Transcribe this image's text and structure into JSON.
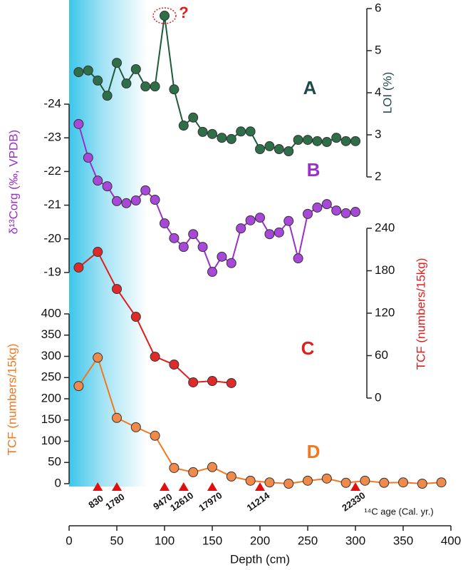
{
  "chart_data": [
    {
      "type": "line",
      "panel_label": "A",
      "ylabel": "LOI (%)",
      "axis_side": "right",
      "ylim": [
        2,
        6
      ],
      "yticks": [
        2,
        3,
        4,
        5,
        6
      ],
      "xlim": [
        0,
        400
      ],
      "x": [
        10,
        20,
        30,
        40,
        50,
        60,
        70,
        80,
        90,
        100,
        110,
        120,
        130,
        140,
        150,
        160,
        170,
        180,
        190,
        200,
        210,
        220,
        230,
        240,
        250,
        260,
        270,
        280,
        290,
        300
      ],
      "series": [
        {
          "name": "LOI",
          "color": "#1f5a3a",
          "values": [
            4.49,
            4.53,
            4.29,
            3.93,
            4.71,
            4.22,
            4.56,
            4.15,
            4.15,
            5.83,
            4.08,
            3.22,
            3.41,
            3.07,
            3.02,
            2.93,
            2.9,
            3.08,
            3.08,
            2.66,
            2.73,
            2.66,
            2.61,
            2.88,
            2.88,
            2.85,
            2.83,
            2.93,
            2.85,
            2.85
          ]
        }
      ],
      "annotation": "?"
    },
    {
      "type": "line",
      "panel_label": "B",
      "ylabel": "δ¹³Corg (‰, VPDB)",
      "axis_side": "left",
      "ylim": [
        -19,
        -24
      ],
      "yticks": [
        -24,
        -23,
        -22,
        -21,
        -20,
        -19
      ],
      "xlim": [
        0,
        400
      ],
      "x": [
        10,
        20,
        30,
        40,
        50,
        60,
        70,
        80,
        90,
        100,
        110,
        120,
        130,
        140,
        150,
        160,
        170,
        180,
        190,
        200,
        210,
        220,
        230,
        240,
        250,
        260,
        270,
        280,
        290,
        300
      ],
      "series": [
        {
          "name": "δ13Corg",
          "color": "#9b30c8",
          "values": [
            -23.41,
            -22.41,
            -21.73,
            -21.56,
            -21.12,
            -21.06,
            -21.14,
            -21.44,
            -21.16,
            -20.46,
            -20.02,
            -19.76,
            -20.14,
            -19.76,
            -19.02,
            -19.47,
            -19.28,
            -20.31,
            -20.55,
            -20.63,
            -20.14,
            -20.19,
            -20.53,
            -19.42,
            -20.74,
            -20.93,
            -21.03,
            -20.84,
            -20.76,
            -20.8
          ]
        }
      ]
    },
    {
      "type": "line",
      "panel_label": "C",
      "ylabel": "TCF (numbers/15kg)",
      "axis_side": "right",
      "ylim": [
        0,
        240
      ],
      "yticks": [
        0,
        60,
        120,
        180,
        240
      ],
      "xlim": [
        0,
        400
      ],
      "x": [
        10,
        30,
        50,
        70,
        90,
        110,
        130,
        150,
        170
      ],
      "series": [
        {
          "name": "TCF C",
          "color": "#e01e1e",
          "values": [
            184.5,
            206.7,
            154.2,
            114.9,
            58.5,
            47.4,
            22.2,
            24.2,
            21.2
          ]
        }
      ]
    },
    {
      "type": "line",
      "panel_label": "D",
      "ylabel": "TCF (numbers/15kg)",
      "axis_side": "left",
      "ylim": [
        0,
        400
      ],
      "yticks": [
        0,
        50,
        100,
        150,
        200,
        250,
        300,
        350,
        400
      ],
      "xlabel": "Depth (cm)",
      "xlim": [
        0,
        400
      ],
      "xticks": [
        0,
        50,
        100,
        150,
        200,
        250,
        300,
        350,
        400
      ],
      "x": [
        10,
        30,
        50,
        70,
        90,
        110,
        130,
        150,
        170,
        190,
        210,
        230,
        250,
        270,
        290,
        310,
        330,
        350,
        370,
        390
      ],
      "series": [
        {
          "name": "TCF D",
          "color": "#f07820",
          "values": [
            230,
            297,
            155,
            133,
            113,
            37,
            27,
            39,
            17,
            7,
            3,
            0,
            7,
            12,
            2,
            7,
            2,
            3,
            0,
            3
          ]
        }
      ],
      "age_label": "¹⁴C age (Cal. yr.)",
      "age_depths": [
        30,
        50,
        100,
        120,
        150,
        200,
        300
      ],
      "ages": [
        830,
        1780,
        9470,
        12610,
        17970,
        11214,
        22330
      ]
    }
  ]
}
